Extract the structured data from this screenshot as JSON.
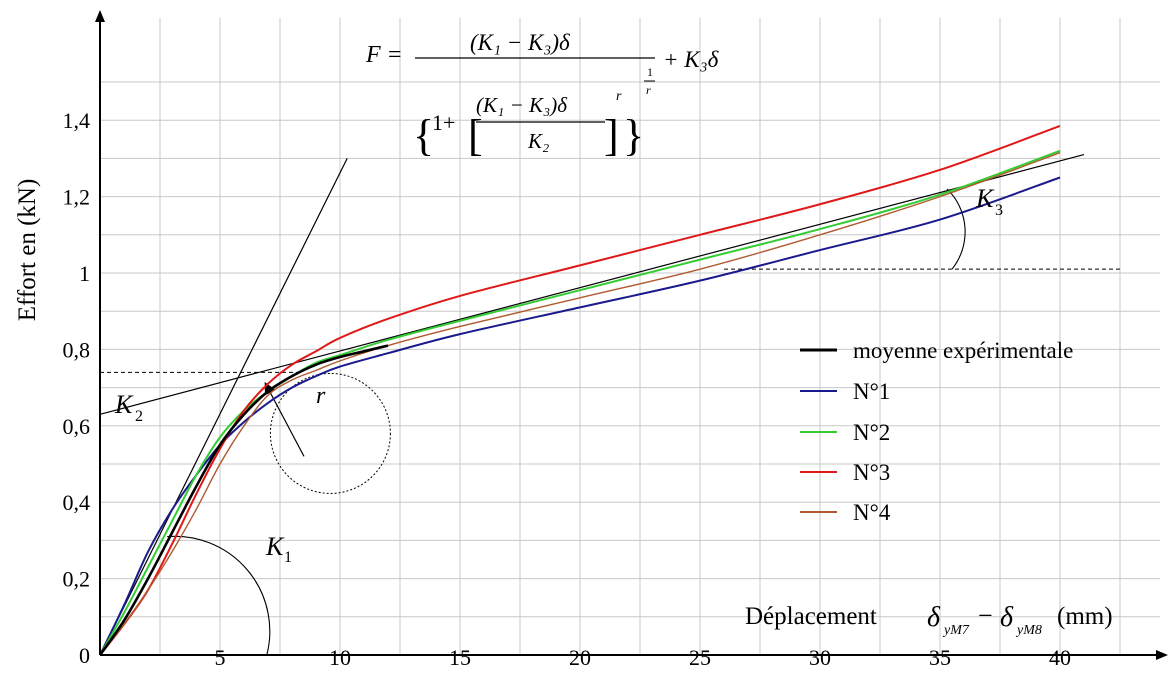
{
  "chart_data": {
    "type": "line",
    "xlabel": "Déplacement",
    "xlabel_math": {
      "d1": "δ",
      "s1": "yM7",
      "minus": "−",
      "d2": "δ",
      "s2": "yM8",
      "unit": "(mm)"
    },
    "ylabel": "Effort en (kN)",
    "xlim": [
      0,
      44
    ],
    "ylim": [
      0,
      1.6
    ],
    "x_ticks": [
      5,
      10,
      15,
      20,
      25,
      30,
      35,
      40
    ],
    "x_tick_labels": [
      "5",
      "10",
      "15",
      "20",
      "25",
      "30",
      "35",
      "40"
    ],
    "y_ticks": [
      0,
      0.2,
      0.4,
      0.6,
      0.8,
      1,
      1.2,
      1.4
    ],
    "y_tick_labels": [
      "0",
      "0,2",
      "0,4",
      "0,6",
      "0,8",
      "1",
      "1,2",
      "1,4"
    ],
    "grid": true,
    "legend_position": "right",
    "series": [
      {
        "name": "moyenne expérimentale",
        "color": "#000000",
        "x": [
          0,
          1,
          2,
          3,
          4,
          5,
          6,
          7,
          8,
          9,
          10,
          11,
          12
        ],
        "y": [
          0,
          0.09,
          0.2,
          0.32,
          0.44,
          0.55,
          0.63,
          0.69,
          0.73,
          0.76,
          0.78,
          0.795,
          0.81
        ]
      },
      {
        "name": "N°1",
        "color": "#1a1a8c",
        "x": [
          0,
          1,
          2,
          3,
          4,
          5,
          6,
          7,
          8,
          9,
          10,
          12,
          15,
          20,
          25,
          30,
          35,
          40
        ],
        "y": [
          0,
          0.13,
          0.27,
          0.38,
          0.47,
          0.55,
          0.61,
          0.66,
          0.7,
          0.73,
          0.755,
          0.79,
          0.84,
          0.91,
          0.98,
          1.06,
          1.14,
          1.25
        ]
      },
      {
        "name": "N°2",
        "color": "#33cc33",
        "x": [
          0,
          1,
          2,
          3,
          4,
          5,
          6,
          7,
          8,
          9,
          10,
          12,
          15,
          20,
          25,
          30,
          35,
          40
        ],
        "y": [
          0,
          0.11,
          0.23,
          0.35,
          0.47,
          0.57,
          0.64,
          0.69,
          0.73,
          0.765,
          0.785,
          0.825,
          0.875,
          0.955,
          1.035,
          1.115,
          1.205,
          1.32
        ]
      },
      {
        "name": "N°3",
        "color": "#e01818",
        "x": [
          0,
          1,
          2,
          3,
          4,
          5,
          6,
          7,
          8,
          9,
          10,
          12,
          15,
          20,
          25,
          30,
          35,
          40
        ],
        "y": [
          0,
          0.08,
          0.17,
          0.29,
          0.42,
          0.54,
          0.64,
          0.71,
          0.76,
          0.795,
          0.83,
          0.88,
          0.94,
          1.02,
          1.1,
          1.18,
          1.27,
          1.385
        ]
      },
      {
        "name": "N°4",
        "color": "#b05a30",
        "x": [
          0,
          1,
          2,
          3,
          4,
          5,
          6,
          7,
          8,
          9,
          10,
          12,
          15,
          20,
          25,
          30,
          35,
          40
        ],
        "y": [
          0,
          0.08,
          0.17,
          0.27,
          0.38,
          0.5,
          0.6,
          0.68,
          0.72,
          0.745,
          0.77,
          0.81,
          0.86,
          0.935,
          1.01,
          1.1,
          1.2,
          1.315
        ]
      }
    ],
    "annotations": {
      "K1": "K",
      "K1_sub": "1",
      "K2": "K",
      "K2_sub": "2",
      "K3": "K",
      "K3_sub": "3",
      "r": "r",
      "formula": {
        "lhs": "F",
        "eq": "=",
        "num": "(K₁ − K₃)δ",
        "den_one": "1+",
        "den_inner_num": "(K₁ − K₃)δ",
        "den_inner_den": "K₂",
        "exp_r": "r",
        "exp_outer_num": "1",
        "exp_outer_den": "r",
        "tail": "+ K₃δ"
      }
    }
  }
}
